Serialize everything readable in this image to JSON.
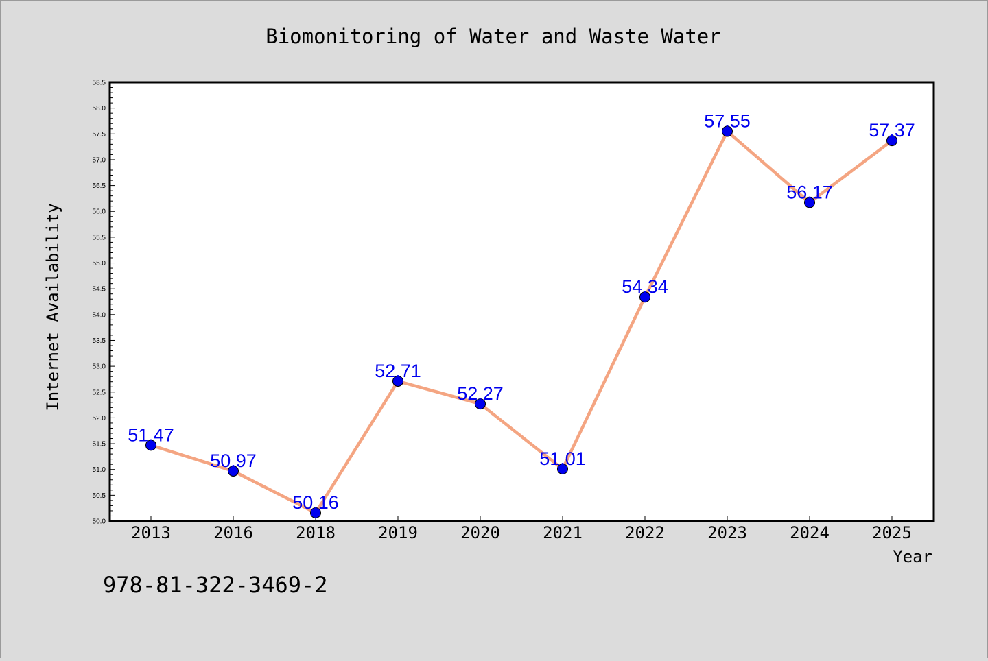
{
  "chart_data": {
    "type": "line",
    "title": "Biomonitoring of Water and Waste Water",
    "xlabel": "Year",
    "ylabel": "Internet Availability",
    "categories": [
      "2013",
      "2016",
      "2018",
      "2019",
      "2020",
      "2021",
      "2022",
      "2023",
      "2024",
      "2025"
    ],
    "series": [
      {
        "values": [
          51.47,
          50.97,
          50.16,
          52.71,
          52.27,
          51.01,
          54.34,
          57.55,
          56.17,
          57.37
        ],
        "data_labels": [
          "51.47",
          "50.97",
          "50.16",
          "52.71",
          "52.27",
          "51.01",
          "54.34",
          "57.55",
          "56.17",
          "57.37"
        ],
        "line_color": "#f4a582",
        "marker_color": "#0000ee",
        "label_color": "#0000ee"
      }
    ],
    "ylim": [
      50.0,
      58.5
    ],
    "yticks": [
      "50.0",
      "50.5",
      "51.0",
      "51.5",
      "52.0",
      "52.5",
      "53.0",
      "53.5",
      "54.0",
      "54.5",
      "55.0",
      "55.5",
      "56.0",
      "56.5",
      "57.0",
      "57.5",
      "58.0",
      "58.5"
    ],
    "grid": false,
    "legend": "none"
  },
  "footer": {
    "isbn": "978-81-322-3469-2"
  },
  "colors": {
    "background": "#dcdcdc",
    "plot_background": "#ffffff",
    "axis": "#000000"
  }
}
